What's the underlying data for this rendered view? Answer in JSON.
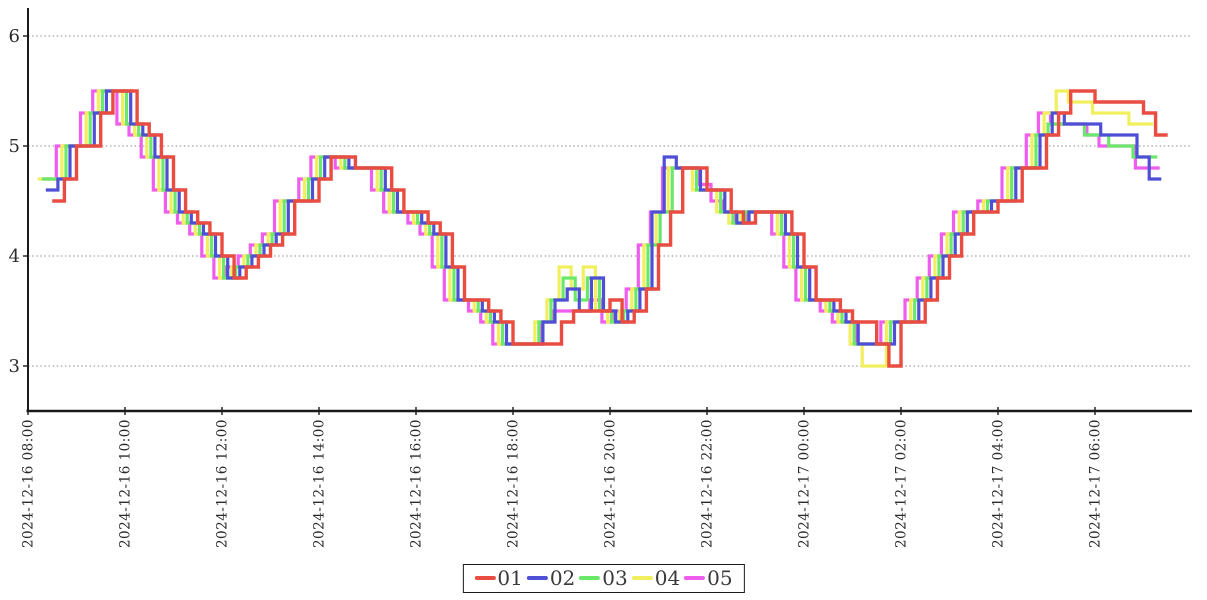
{
  "chart_data": {
    "type": "line",
    "subtype": "step-after",
    "title": "",
    "x_start": "2024-12-16 08:30",
    "x_step_minutes": 15,
    "x_axis": {
      "tick_spacing_minutes": 120,
      "tick_labels": [
        "2024-12-16 08:00",
        "2024-12-16 10:00",
        "2024-12-16 12:00",
        "2024-12-16 14:00",
        "2024-12-16 16:00",
        "2024-12-16 18:00",
        "2024-12-16 20:00",
        "2024-12-16 22:00",
        "2024-12-17 00:00",
        "2024-12-17 02:00",
        "2024-12-17 04:00",
        "2024-12-17 06:00"
      ]
    },
    "y_axis": {
      "ticks": [
        3,
        4,
        5,
        6
      ],
      "tick_labels": [
        "3",
        "4",
        "5",
        "6"
      ],
      "range": [
        2.6,
        6.25
      ]
    },
    "grid": {
      "horizontal_dotted": true,
      "color": "#8a8a8a"
    },
    "legend_position": "bottom-center",
    "series": [
      {
        "name": "05",
        "color": "#ee5dee",
        "offset_minutes": -10,
        "line_width": 3.2,
        "values": [
          4.7,
          5.0,
          5.0,
          5.3,
          5.5,
          5.5,
          5.2,
          5.1,
          4.9,
          4.6,
          4.4,
          4.3,
          4.2,
          4.0,
          3.8,
          3.9,
          4.0,
          4.1,
          4.2,
          4.5,
          4.5,
          4.7,
          4.9,
          4.9,
          4.8,
          4.8,
          4.8,
          4.6,
          4.4,
          4.4,
          4.3,
          4.2,
          3.9,
          3.6,
          3.6,
          3.5,
          3.4,
          3.2,
          3.2,
          3.2,
          3.2,
          3.4,
          3.5,
          3.5,
          3.5,
          3.6,
          3.4,
          3.5,
          3.7,
          4.1,
          4.4,
          4.8,
          4.8,
          4.8,
          4.65,
          4.5,
          4.4,
          4.3,
          4.4,
          4.4,
          4.2,
          3.9,
          3.6,
          3.6,
          3.5,
          3.4,
          3.4,
          3.2,
          3.2,
          3.4,
          3.4,
          3.6,
          3.8,
          4.0,
          4.2,
          4.4,
          4.4,
          4.5,
          4.5,
          4.8,
          4.8,
          5.1,
          5.3,
          5.2,
          5.2,
          5.2,
          5.1,
          5.0,
          5.0,
          5.0,
          4.8,
          4.8
        ]
      },
      {
        "name": "04",
        "color": "#f2ef5e",
        "offset_minutes": -18,
        "line_width": 3.2,
        "values": [
          4.7,
          4.7,
          5.0,
          5.0,
          5.3,
          5.5,
          5.5,
          5.2,
          5.1,
          4.9,
          4.6,
          4.4,
          4.3,
          4.2,
          4.0,
          3.8,
          3.9,
          4.0,
          4.1,
          4.2,
          4.5,
          4.5,
          4.7,
          4.9,
          4.9,
          4.8,
          4.8,
          4.8,
          4.6,
          4.4,
          4.4,
          4.3,
          4.2,
          3.9,
          3.6,
          3.6,
          3.5,
          3.4,
          3.2,
          3.2,
          3.2,
          3.4,
          3.6,
          3.9,
          3.7,
          3.9,
          3.5,
          3.4,
          3.5,
          3.7,
          4.1,
          4.4,
          4.8,
          4.8,
          4.6,
          4.6,
          4.4,
          4.3,
          4.4,
          4.4,
          4.4,
          4.2,
          3.9,
          3.6,
          3.6,
          3.5,
          3.4,
          3.2,
          3.0,
          3.0,
          3.4,
          3.4,
          3.6,
          3.8,
          4.0,
          4.2,
          4.4,
          4.4,
          4.5,
          4.5,
          4.8,
          4.8,
          5.1,
          5.3,
          5.5,
          5.4,
          5.4,
          5.3,
          5.3,
          5.3,
          5.2,
          5.2
        ]
      },
      {
        "name": "03",
        "color": "#6ae86a",
        "offset_minutes": -13,
        "line_width": 3.2,
        "values": [
          4.7,
          4.7,
          5.0,
          5.0,
          5.3,
          5.5,
          5.5,
          5.2,
          5.1,
          4.9,
          4.6,
          4.4,
          4.3,
          4.2,
          4.0,
          3.8,
          3.9,
          4.0,
          4.1,
          4.2,
          4.5,
          4.5,
          4.7,
          4.9,
          4.9,
          4.8,
          4.8,
          4.8,
          4.6,
          4.4,
          4.4,
          4.3,
          4.2,
          3.9,
          3.6,
          3.6,
          3.5,
          3.4,
          3.2,
          3.2,
          3.2,
          3.4,
          3.6,
          3.8,
          3.6,
          3.8,
          3.5,
          3.4,
          3.5,
          3.7,
          4.1,
          4.4,
          4.8,
          4.8,
          4.6,
          4.6,
          4.4,
          4.3,
          4.4,
          4.4,
          4.4,
          4.2,
          3.9,
          3.6,
          3.6,
          3.5,
          3.4,
          3.2,
          3.2,
          3.2,
          3.4,
          3.4,
          3.6,
          3.8,
          4.0,
          4.2,
          4.4,
          4.4,
          4.5,
          4.5,
          4.8,
          4.8,
          5.1,
          5.2,
          5.2,
          5.2,
          5.1,
          5.1,
          5.0,
          5.0,
          4.9,
          4.9
        ]
      },
      {
        "name": "02",
        "color": "#4e4fd6",
        "offset_minutes": -8,
        "line_width": 3.2,
        "values": [
          4.6,
          4.7,
          5.0,
          5.0,
          5.3,
          5.5,
          5.5,
          5.2,
          5.1,
          4.9,
          4.6,
          4.4,
          4.3,
          4.2,
          4.0,
          3.8,
          3.9,
          4.0,
          4.1,
          4.2,
          4.5,
          4.5,
          4.7,
          4.9,
          4.9,
          4.8,
          4.8,
          4.8,
          4.6,
          4.4,
          4.4,
          4.3,
          4.2,
          3.9,
          3.6,
          3.6,
          3.5,
          3.4,
          3.2,
          3.2,
          3.2,
          3.4,
          3.6,
          3.7,
          3.5,
          3.8,
          3.5,
          3.4,
          3.5,
          3.7,
          4.4,
          4.9,
          4.8,
          4.8,
          4.6,
          4.6,
          4.4,
          4.3,
          4.4,
          4.4,
          4.4,
          4.2,
          3.9,
          3.6,
          3.6,
          3.5,
          3.4,
          3.2,
          3.2,
          3.2,
          3.4,
          3.4,
          3.6,
          3.8,
          4.0,
          4.2,
          4.4,
          4.4,
          4.5,
          4.5,
          4.8,
          4.8,
          5.1,
          5.3,
          5.2,
          5.2,
          5.2,
          5.1,
          5.1,
          5.1,
          4.9,
          4.7
        ]
      },
      {
        "name": "01",
        "color": "#e94d42",
        "offset_minutes": 0,
        "line_width": 3.4,
        "values": [
          4.5,
          4.7,
          5.0,
          5.0,
          5.3,
          5.5,
          5.5,
          5.2,
          5.1,
          4.9,
          4.6,
          4.4,
          4.3,
          4.2,
          4.0,
          3.8,
          3.9,
          4.0,
          4.1,
          4.2,
          4.5,
          4.5,
          4.7,
          4.9,
          4.9,
          4.8,
          4.8,
          4.8,
          4.6,
          4.4,
          4.4,
          4.3,
          4.2,
          3.9,
          3.6,
          3.6,
          3.5,
          3.4,
          3.2,
          3.2,
          3.2,
          3.2,
          3.4,
          3.5,
          3.5,
          3.5,
          3.6,
          3.4,
          3.5,
          3.7,
          4.1,
          4.4,
          4.8,
          4.8,
          4.6,
          4.6,
          4.4,
          4.3,
          4.4,
          4.4,
          4.4,
          4.2,
          3.9,
          3.6,
          3.6,
          3.5,
          3.4,
          3.4,
          3.2,
          3.0,
          3.4,
          3.4,
          3.6,
          3.8,
          4.0,
          4.2,
          4.4,
          4.4,
          4.5,
          4.5,
          4.8,
          4.8,
          5.1,
          5.3,
          5.5,
          5.5,
          5.4,
          5.4,
          5.4,
          5.4,
          5.3,
          5.1
        ]
      }
    ],
    "legend_entries": [
      "01",
      "02",
      "03",
      "04",
      "05"
    ]
  }
}
